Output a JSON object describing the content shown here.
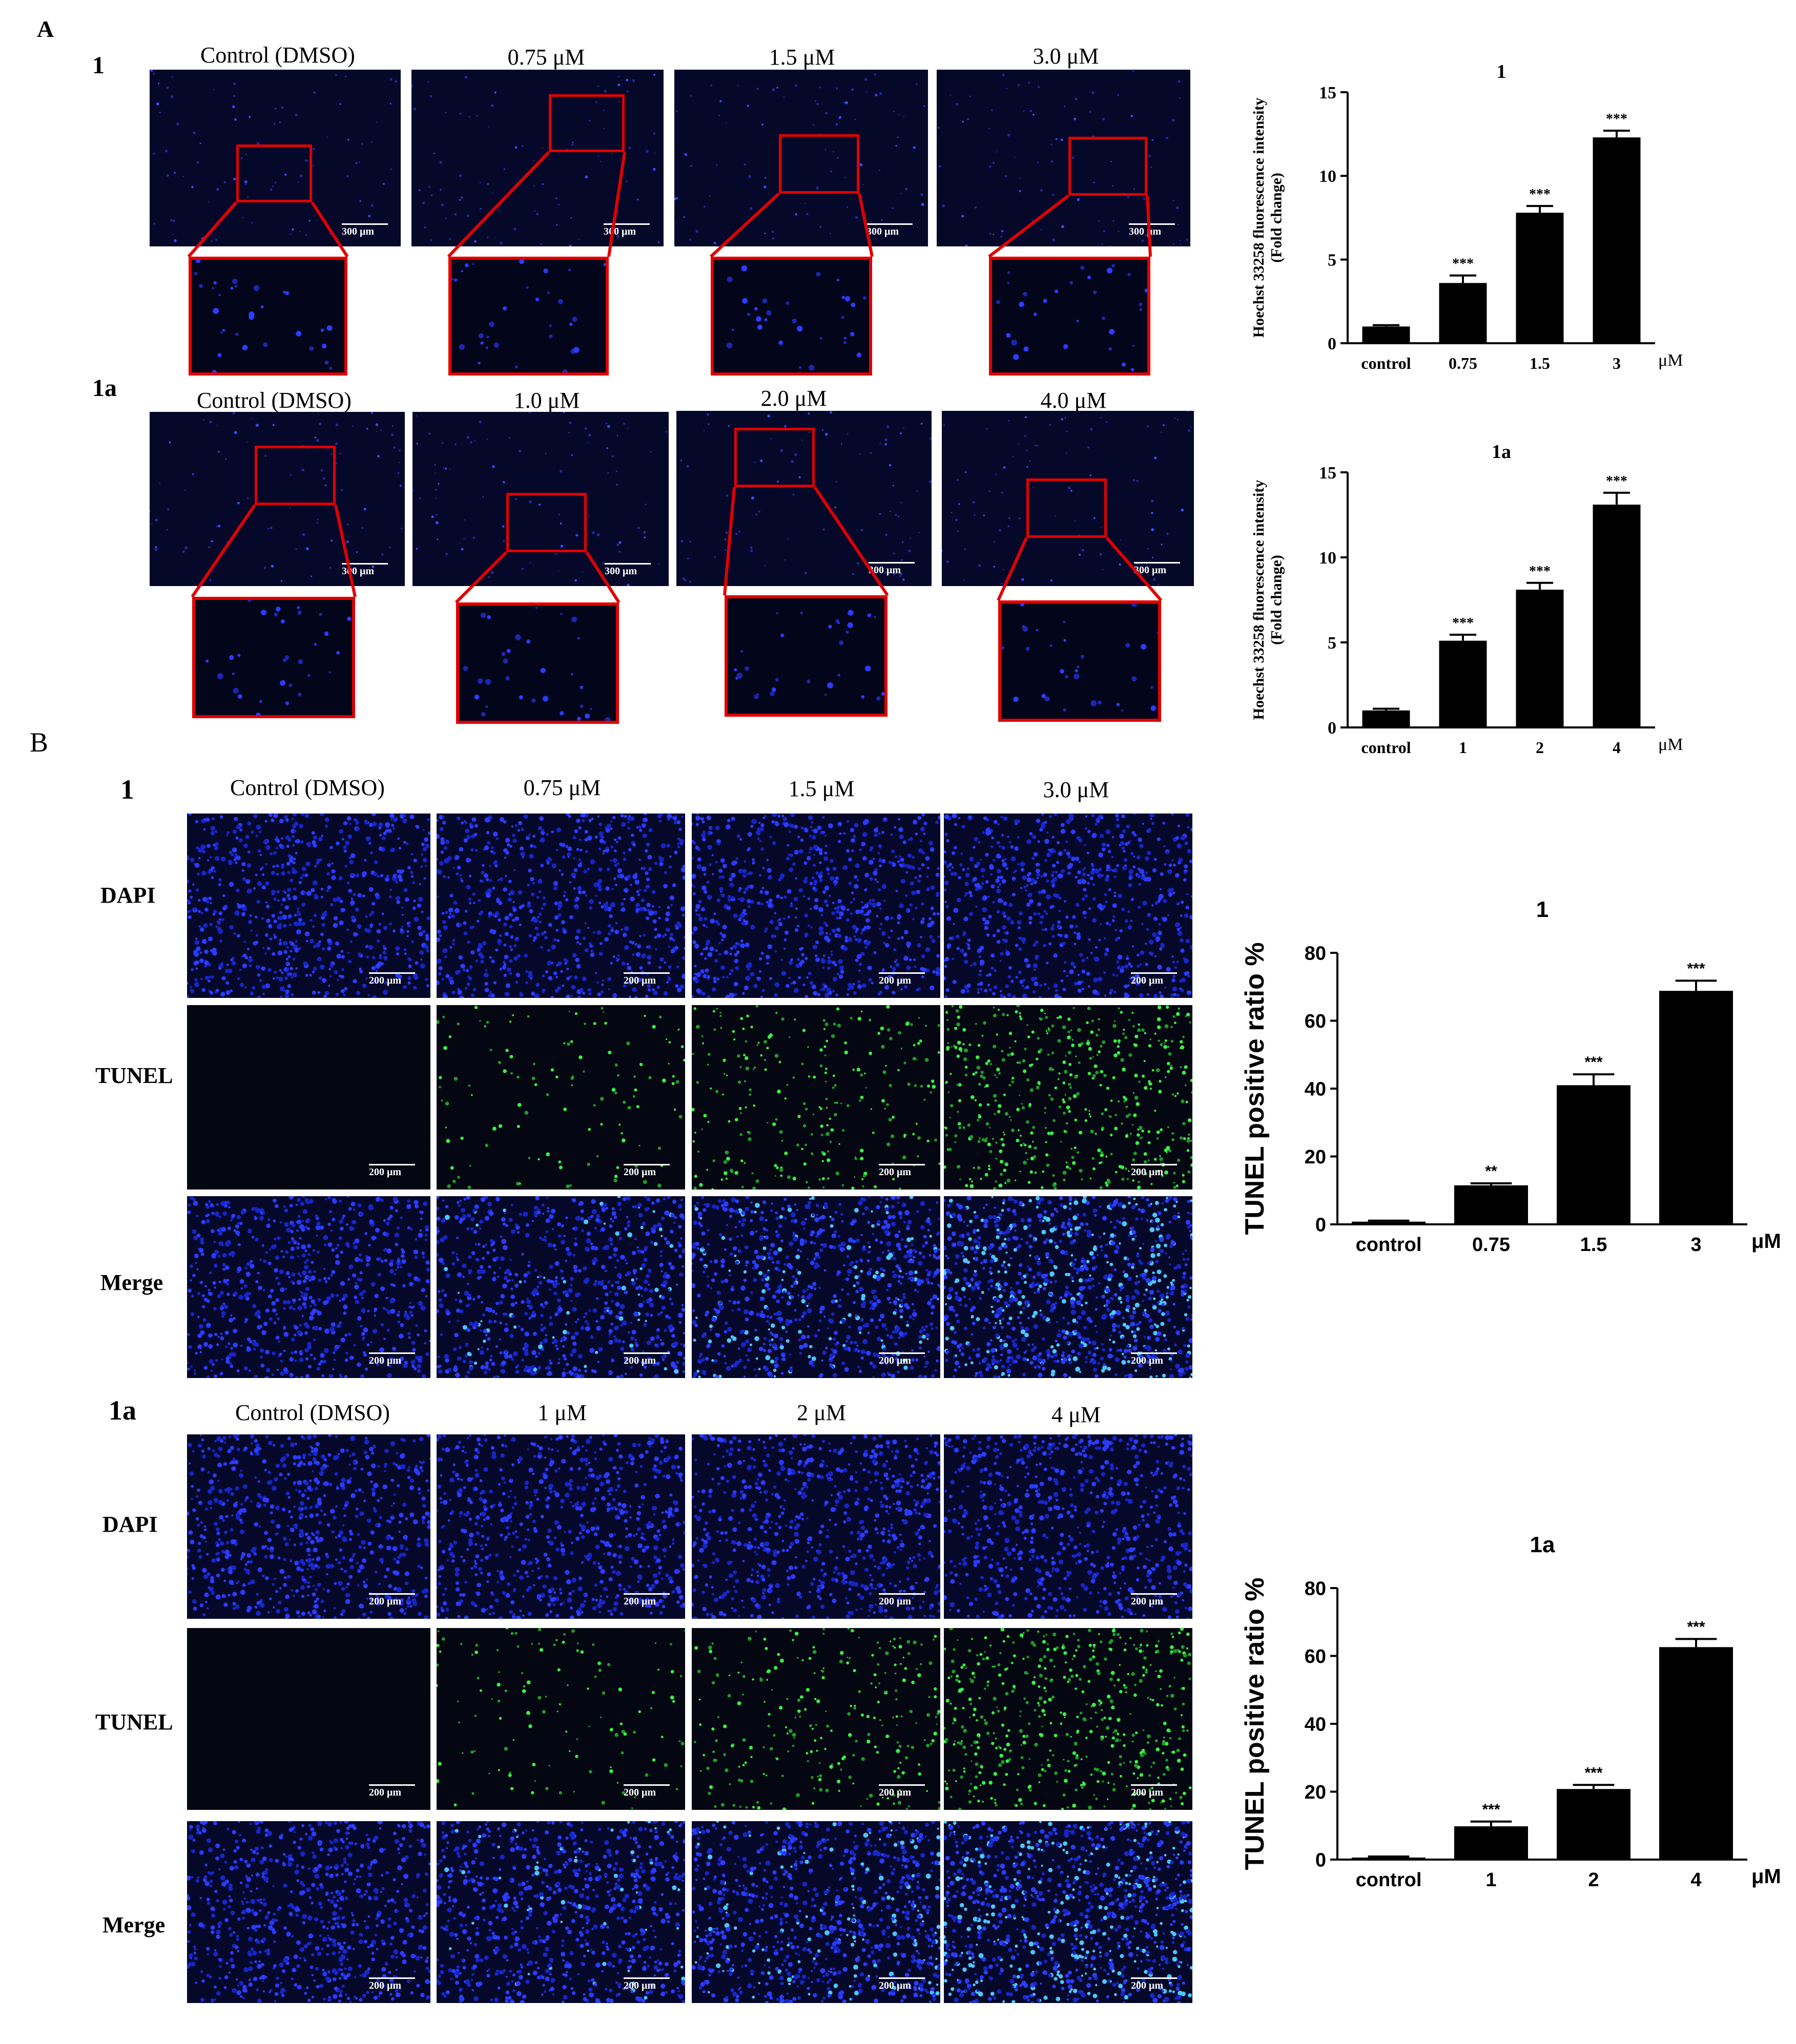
{
  "panels": {
    "a_letter": "A",
    "b_letter": "B"
  },
  "panel_a": {
    "row1": {
      "tag": "1",
      "columns": [
        "Control (DMSO)",
        "0.75 μM",
        "1.5 μM",
        "3.0 μM"
      ],
      "scale": "300 μm"
    },
    "row2": {
      "tag": "1a",
      "columns": [
        "Control (DMSO)",
        "1.0 μM",
        "2.0 μM",
        "4.0 μM"
      ],
      "scale": "300 μm"
    }
  },
  "panel_b": {
    "group1": {
      "tag": "1",
      "columns": [
        "Control (DMSO)",
        "0.75 μM",
        "1.5 μM",
        "3.0 μM"
      ],
      "stains": [
        "DAPI",
        "TUNEL",
        "Merge"
      ],
      "scale": "200 μm"
    },
    "group2": {
      "tag": "1a",
      "columns": [
        "Control (DMSO)",
        "1 μM",
        "2 μM",
        "4 μM"
      ],
      "stains": [
        "DAPI",
        "TUNEL",
        "Merge"
      ],
      "scale": "200 μm"
    }
  },
  "colors": {
    "roi": "#e10000",
    "dapi": "#1a2cff",
    "tunel": "#2ee63a",
    "merge": "#3aa8ff",
    "bar": "#000000"
  },
  "chart_data": [
    {
      "type": "bar",
      "title": "1",
      "ylabel": "Hoechst 33258 fluorescence intensity\n(Fold change)",
      "xunit": "μM",
      "categories": [
        "control",
        "0.75",
        "1.5",
        "3"
      ],
      "values": [
        1.0,
        3.6,
        7.8,
        12.3
      ],
      "errors": [
        0.08,
        0.45,
        0.4,
        0.4
      ],
      "significance": [
        "",
        "***",
        "***",
        "***"
      ],
      "ylim": [
        0,
        15
      ],
      "yticks": [
        0,
        5,
        10,
        15
      ]
    },
    {
      "type": "bar",
      "title": "1a",
      "ylabel": "Hoechst 33258 fluorescence intensity\n(Fold change)",
      "xunit": "μM",
      "categories": [
        "control",
        "1",
        "2",
        "4"
      ],
      "values": [
        1.0,
        5.1,
        8.1,
        13.1
      ],
      "errors": [
        0.1,
        0.35,
        0.4,
        0.7
      ],
      "significance": [
        "",
        "***",
        "***",
        "***"
      ],
      "ylim": [
        0,
        15
      ],
      "yticks": [
        0,
        5,
        10,
        15
      ]
    },
    {
      "type": "bar",
      "title": "1",
      "ylabel": "TUNEL positive ratio %",
      "xunit": "μM",
      "categories": [
        "control",
        "0.75",
        "1.5",
        "3"
      ],
      "values": [
        0.8,
        11.5,
        41.0,
        68.8
      ],
      "errors": [
        0.3,
        0.6,
        3.2,
        3.0
      ],
      "significance": [
        "",
        "**",
        "***",
        "***"
      ],
      "ylim": [
        0,
        80
      ],
      "yticks": [
        0,
        20,
        40,
        60,
        80
      ]
    },
    {
      "type": "bar",
      "title": "1a",
      "ylabel": "TUNEL positive ratio %",
      "xunit": "μM",
      "categories": [
        "control",
        "1",
        "2",
        "4"
      ],
      "values": [
        0.6,
        9.8,
        20.8,
        62.6
      ],
      "errors": [
        0.3,
        1.4,
        1.2,
        2.4
      ],
      "significance": [
        "",
        "***",
        "***",
        "***"
      ],
      "ylim": [
        0,
        80
      ],
      "yticks": [
        0,
        20,
        40,
        60,
        80
      ]
    }
  ]
}
